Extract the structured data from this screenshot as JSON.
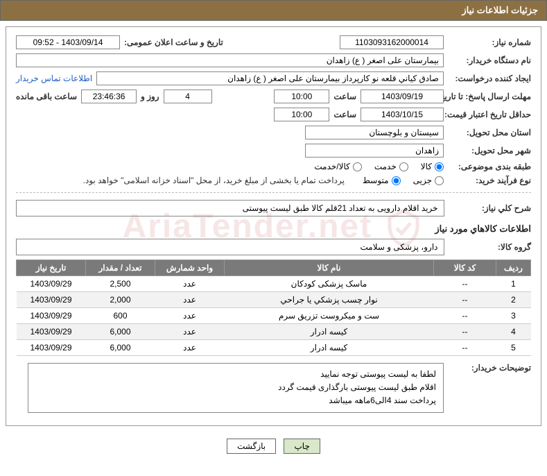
{
  "header": {
    "title": "جزئیات اطلاعات نیاز"
  },
  "fields": {
    "need_no_label": "شماره نیاز:",
    "need_no": "1103093162000014",
    "announce_label": "تاریخ و ساعت اعلان عمومی:",
    "announce_value": "1403/09/14 - 09:52",
    "buyer_org_label": "نام دستگاه خریدار:",
    "buyer_org": "بیمارستان علی اصغر ( ع) زاهدان",
    "requester_label": "ایجاد کننده درخواست:",
    "requester": "صادق كياني قلعه نو کارپرداز بیمارستان علی اصغر ( ع) زاهدان",
    "contact_link": "اطلاعات تماس خریدار",
    "deadline_label": "مهلت ارسال پاسخ: تا تاریخ:",
    "deadline_date": "1403/09/19",
    "time_label": "ساعت",
    "deadline_time": "10:00",
    "days_value": "4",
    "days_label": "روز و",
    "countdown": "23:46:36",
    "remain_label": "ساعت باقی مانده",
    "validity_label": "حداقل تاریخ اعتبار قیمت: تا تاریخ:",
    "validity_date": "1403/10/15",
    "validity_time": "10:00",
    "province_label": "استان محل تحویل:",
    "province": "سیستان و بلوچستان",
    "city_label": "شهر محل تحویل:",
    "city": "زاهدان",
    "category_label": "طبقه بندی موضوعی:",
    "cat_goods": "کالا",
    "cat_service": "خدمت",
    "cat_both": "کالا/خدمت",
    "proc_label": "نوع فرآیند خرید:",
    "proc_partial": "جزیی",
    "proc_medium": "متوسط",
    "proc_note": "پرداخت تمام یا بخشی از مبلغ خرید، از محل \"اسناد خزانه اسلامی\" خواهد بود.",
    "overall_label": "شرح كلي نياز:",
    "overall_desc": "خرید اقلام دارویی به تعداد 21قلم کالا طبق لیست پیوستی",
    "goods_section": "اطلاعات کالاهاي مورد نياز",
    "group_label": "گروه کالا:",
    "group_value": "دارو، پزشکی و سلامت",
    "buyer_notes_label": "توضیحات خریدار:",
    "buyer_notes_l1": "لطفا به لیست پیوستی توجه نمایید",
    "buyer_notes_l2": "اقلام طبق لیست پیوستی بارگذاری قیمت گردد",
    "buyer_notes_l3": "پرداخت سند 4الی6ماهه میباشد"
  },
  "table": {
    "headers": {
      "row": "ردیف",
      "code": "کد کالا",
      "name": "نام کالا",
      "unit": "واحد شمارش",
      "qty": "تعداد / مقدار",
      "date": "تاریخ نیاز"
    },
    "rows": [
      {
        "n": "1",
        "code": "--",
        "name": "ماسک پزشکی کودکان",
        "unit": "عدد",
        "qty": "2,500",
        "date": "1403/09/29"
      },
      {
        "n": "2",
        "code": "--",
        "name": "نوار چسب پزشكي يا جراحي",
        "unit": "عدد",
        "qty": "2,000",
        "date": "1403/09/29"
      },
      {
        "n": "3",
        "code": "--",
        "name": "ست و میکروست تزریق سرم",
        "unit": "عدد",
        "qty": "600",
        "date": "1403/09/29"
      },
      {
        "n": "4",
        "code": "--",
        "name": "کیسه ادرار",
        "unit": "عدد",
        "qty": "6,000",
        "date": "1403/09/29"
      },
      {
        "n": "5",
        "code": "--",
        "name": "کیسه ادرار",
        "unit": "عدد",
        "qty": "6,000",
        "date": "1403/09/29"
      }
    ]
  },
  "buttons": {
    "print": "چاپ",
    "back": "بازگشت"
  },
  "watermark": "AriaTender.net",
  "style": {
    "header_bg": "#8d7042",
    "th_bg": "#7a7a7a",
    "link_color": "#2060c0",
    "btn_print_bg": "#d8e8c8"
  }
}
